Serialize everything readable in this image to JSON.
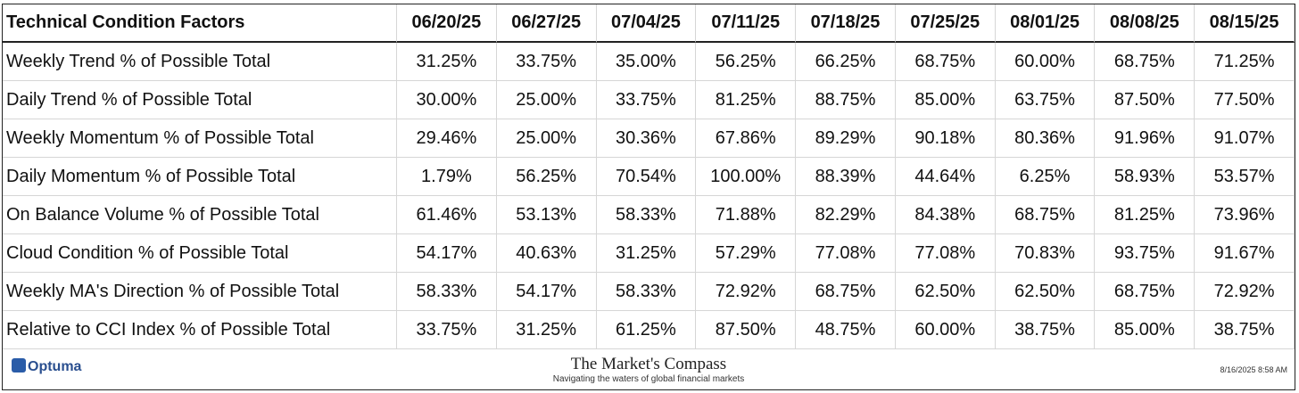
{
  "table": {
    "header": [
      "Technical Condition Factors",
      "06/20/25",
      "06/27/25",
      "07/04/25",
      "07/11/25",
      "07/18/25",
      "07/25/25",
      "08/01/25",
      "08/08/25",
      "08/15/25"
    ],
    "rows": [
      [
        "Weekly Trend % of Possible Total",
        "31.25%",
        "33.75%",
        "35.00%",
        "56.25%",
        "66.25%",
        "68.75%",
        "60.00%",
        "68.75%",
        "71.25%"
      ],
      [
        "Daily Trend % of Possible Total",
        "30.00%",
        "25.00%",
        "33.75%",
        "81.25%",
        "88.75%",
        "85.00%",
        "63.75%",
        "87.50%",
        "77.50%"
      ],
      [
        "Weekly Momentum % of Possible Total",
        "29.46%",
        "25.00%",
        "30.36%",
        "67.86%",
        "89.29%",
        "90.18%",
        "80.36%",
        "91.96%",
        "91.07%"
      ],
      [
        "Daily Momentum % of Possible Total",
        "1.79%",
        "56.25%",
        "70.54%",
        "100.00%",
        "88.39%",
        "44.64%",
        "6.25%",
        "58.93%",
        "53.57%"
      ],
      [
        "On Balance Volume % of Possible Total",
        "61.46%",
        "53.13%",
        "58.33%",
        "71.88%",
        "82.29%",
        "84.38%",
        "68.75%",
        "81.25%",
        "73.96%"
      ],
      [
        "Cloud Condition % of Possible Total",
        "54.17%",
        "40.63%",
        "31.25%",
        "57.29%",
        "77.08%",
        "77.08%",
        "70.83%",
        "93.75%",
        "91.67%"
      ],
      [
        "Weekly MA's Direction % of Possible Total",
        "58.33%",
        "54.17%",
        "58.33%",
        "72.92%",
        "68.75%",
        "62.50%",
        "62.50%",
        "68.75%",
        "72.92%"
      ],
      [
        "Relative to CCI Index % of Possible Total",
        "33.75%",
        "31.25%",
        "61.25%",
        "87.50%",
        "48.75%",
        "60.00%",
        "38.75%",
        "85.00%",
        "38.75%"
      ]
    ]
  },
  "footer": {
    "logo": "Optuma",
    "brand": "The Market's Compass",
    "tagline": "Navigating the waters of global financial markets",
    "timestamp": "8/16/2025 8:58 AM"
  }
}
